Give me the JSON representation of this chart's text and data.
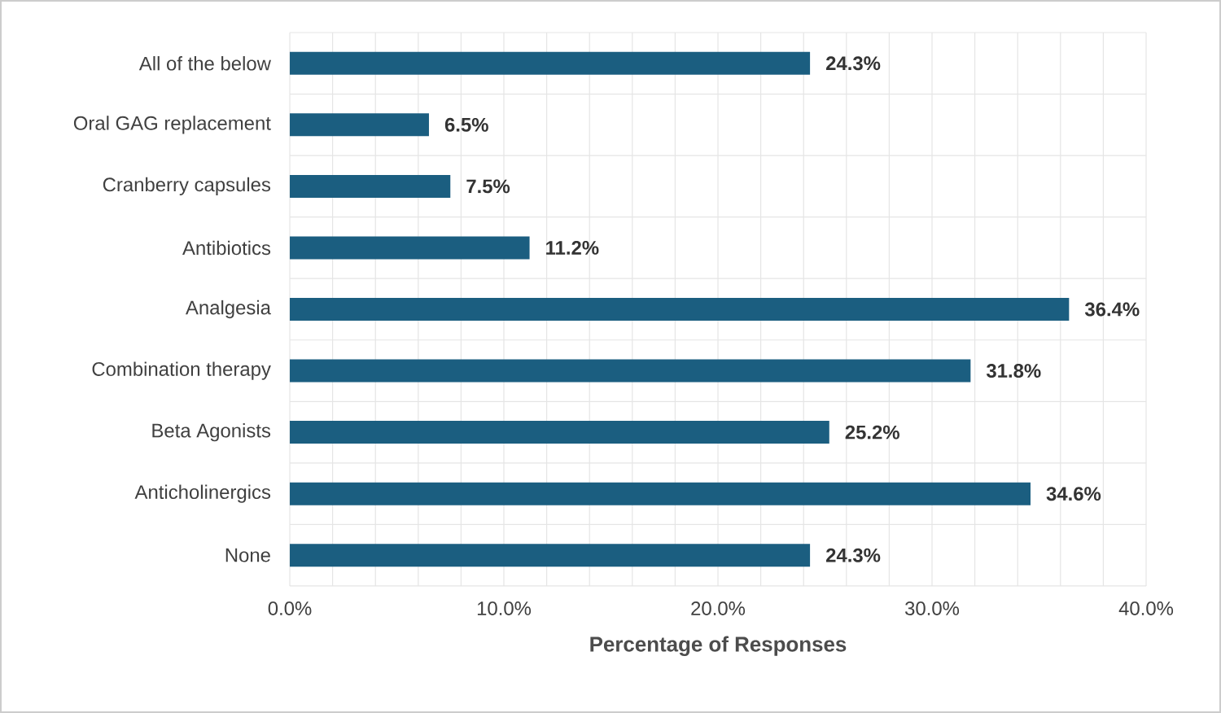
{
  "chart_data": {
    "type": "bar",
    "orientation": "horizontal",
    "xlabel": "Percentage of Responses",
    "categories": [
      "All of the below",
      "Oral GAG replacement",
      "Cranberry capsules",
      "Antibiotics",
      "Analgesia",
      "Combination therapy",
      "Beta Agonists",
      "Anticholinergics",
      "None"
    ],
    "values": [
      24.3,
      6.5,
      7.5,
      11.2,
      36.4,
      31.8,
      25.2,
      34.6,
      24.3
    ],
    "value_labels": [
      "24.3%",
      "6.5%",
      "7.5%",
      "11.2%",
      "36.4%",
      "31.8%",
      "25.2%",
      "34.6%",
      "24.3%"
    ],
    "color": "#1b5e80",
    "xlim": [
      0,
      40
    ],
    "xticks": [
      {
        "value": 0,
        "label": "0.0%"
      },
      {
        "value": 10,
        "label": "10.0%"
      },
      {
        "value": 20,
        "label": "20.0%"
      },
      {
        "value": 30,
        "label": "30.0%"
      },
      {
        "value": 40,
        "label": "40.0%"
      }
    ],
    "grid": true
  }
}
